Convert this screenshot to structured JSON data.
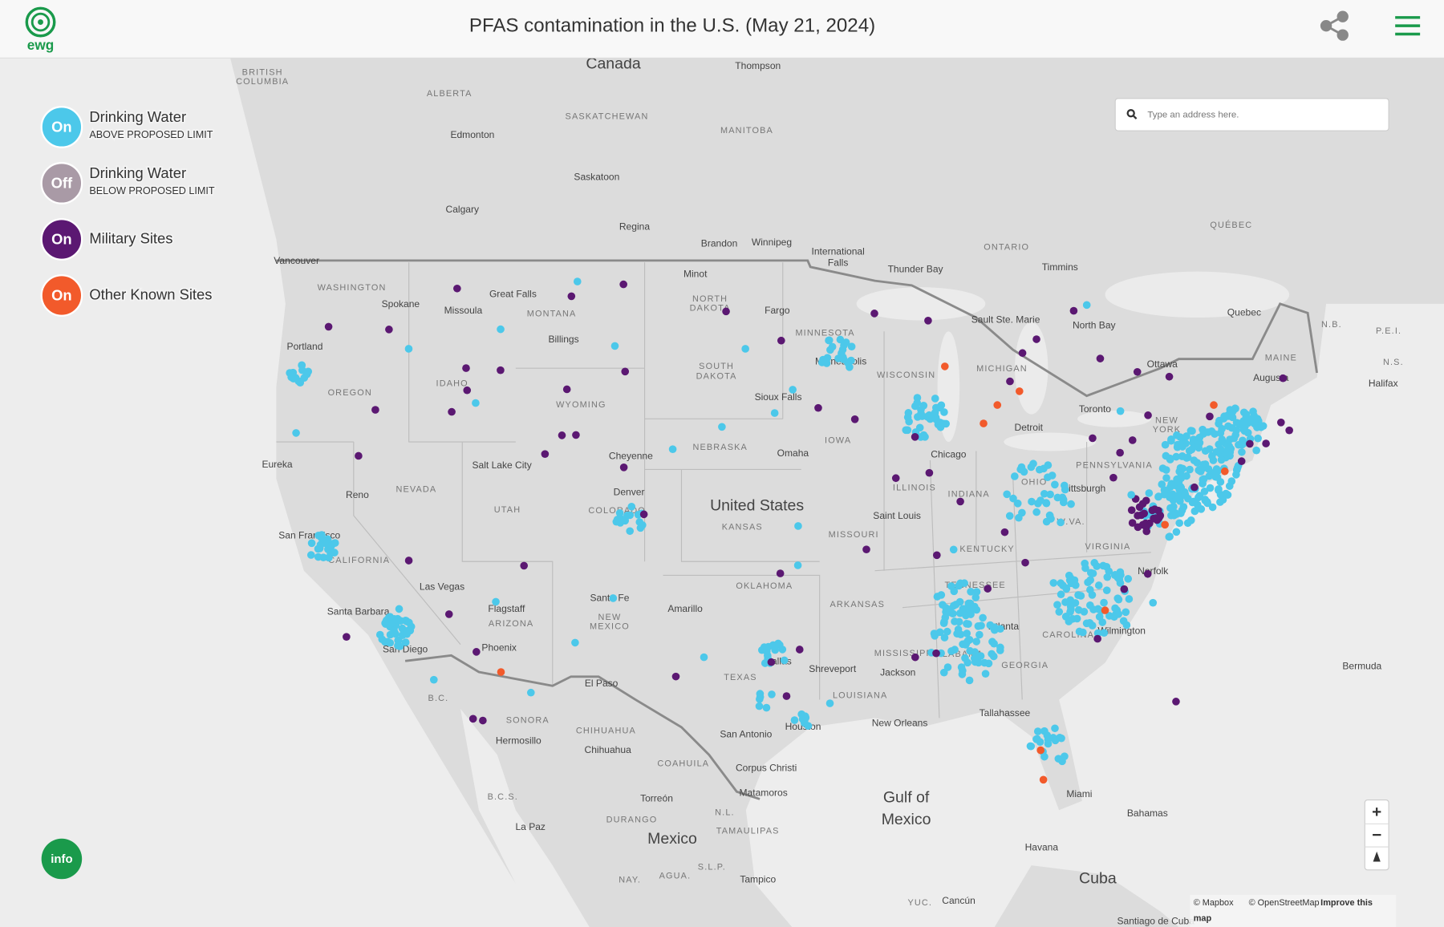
{
  "header": {
    "logo": "ewg",
    "title": "PFAS contamination in the U.S. (May 21, 2024)"
  },
  "legend": [
    {
      "toggle": "On",
      "label": "Drinking Water",
      "sublabel": "ABOVE PROPOSED LIMIT"
    },
    {
      "toggle": "Off",
      "label": "Drinking Water",
      "sublabel": "BELOW PROPOSED LIMIT"
    },
    {
      "toggle": "On",
      "label": "Military Sites"
    },
    {
      "toggle": "On",
      "label": "Other Known Sites"
    }
  ],
  "search": {
    "placeholder": "Type an address here."
  },
  "zoom": {
    "in": "+",
    "out": "−"
  },
  "info": "info",
  "attribution": [
    "© Mapbox",
    "© OpenStreetMap",
    "Improve this",
    "map"
  ],
  "map_labels": [
    "Canada",
    "United States",
    "Mexico",
    "Cuba",
    "Gulf of",
    "Mexico",
    "BRITISH",
    "COLUMBIA",
    "ALBERTA",
    "SASKATCHEWAN",
    "MANITOBA",
    "ONTARIO",
    "QUÉBEC",
    "WASHINGTON",
    "MONTANA",
    "NORTH",
    "DAKOTA",
    "SOUTH",
    "DAKOTA",
    "MINNESOTA",
    "WISCONSIN",
    "MICHIGAN",
    "OREGON",
    "IDAHO",
    "WYOMING",
    "IOWA",
    "NEBRASKA",
    "NEVADA",
    "UTAH",
    "COLORADO",
    "KANSAS",
    "MISSOURI",
    "ILLINOIS",
    "INDIANA",
    "OHIO",
    "PENNSYLVANIA",
    "NEW",
    "YORK",
    "MAINE",
    "KENTUCKY",
    "VIRGINIA",
    "W.VA.",
    "TENNESSEE",
    "CALIFORNIA",
    "ARIZONA",
    "NEW",
    "MEXICO",
    "OKLAHOMA",
    "ARKANSAS",
    "TEXAS",
    "LOUISIANA",
    "MISSISSIPPI",
    "ALABAMA",
    "GEORGIA",
    "CAROLINA",
    "SONORA",
    "CHIHUAHUA",
    "COAHUILA",
    "N.L.",
    "DURANGO",
    "TAMAULIPAS",
    "B.C.",
    "B.C.S.",
    "N.B.",
    "P.E.I.",
    "N.S.",
    "S.L.P.",
    "NAY.",
    "AGUA.",
    "YUC.",
    "Thompson",
    "Edmonton",
    "Saskatoon",
    "Calgary",
    "Regina",
    "Brandon",
    "Winnipeg",
    "International",
    "Falls",
    "Thunder Bay",
    "Timmins",
    "Vancouver",
    "Spokane",
    "Great Falls",
    "Missoula",
    "Billings",
    "Minot",
    "Fargo",
    "Portland",
    "Minneapolis",
    "Sioux Falls",
    "Sault Ste. Marie",
    "North Bay",
    "Ottawa",
    "Quebec",
    "Augusta",
    "Halifax",
    "Toronto",
    "Detroit",
    "Chicago",
    "Omaha",
    "Cheyenne",
    "Salt Lake City",
    "Eureka",
    "Reno",
    "Denver",
    "Pittsburgh",
    "San Francisco",
    "Saint Louis",
    "Las Vegas",
    "Santa Fe",
    "Norfolk",
    "Amarillo",
    "Flagstaff",
    "Santa Barbara",
    "Atlanta",
    "Wilmington",
    "Phoenix",
    "San Diego",
    "Dallas",
    "Shreveport",
    "Jackson",
    "El Paso",
    "Tallahassee",
    "New Orleans",
    "Houston",
    "San Antonio",
    "Hermosillo",
    "Chihuahua",
    "Corpus Christi",
    "Matamoros",
    "Miami",
    "Torreón",
    "Bahamas",
    "La Paz",
    "Havana",
    "Tampico",
    "Cancún",
    "Bermuda",
    "Santiago de Cuba"
  ]
}
